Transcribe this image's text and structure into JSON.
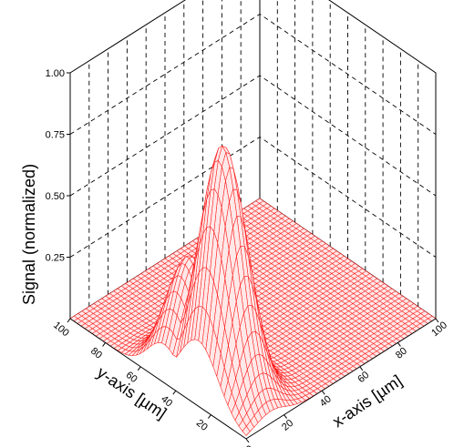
{
  "chart_data": {
    "type": "surface3d",
    "title": "",
    "zlabel": "Signal (normalized)",
    "xlabel": "x-axis [µm]",
    "ylabel": "y-axis [µm]",
    "x_ticks": [
      "0",
      "20",
      "40",
      "60",
      "80",
      "100"
    ],
    "y_ticks": [
      "20",
      "40",
      "60",
      "80",
      "100"
    ],
    "z_ticks": [
      "0.25",
      "0.50",
      "0.75",
      "1.00"
    ],
    "xlim": [
      0,
      100
    ],
    "ylim": [
      0,
      100
    ],
    "zlim": [
      0,
      1.0
    ],
    "grid": true,
    "grid_style": "dashed",
    "mesh_color": "#ff1a1a",
    "mesh_fill": "#ffe8e8",
    "peak": {
      "x_center": 13,
      "y_center": 27,
      "x_width": 8,
      "y_width": 11,
      "amplitude": 1.0,
      "shoulder_amplitude": 0.48,
      "shoulder_y_center": 47,
      "shoulder_y_width": 9,
      "shoulder_x_width": 9
    }
  }
}
